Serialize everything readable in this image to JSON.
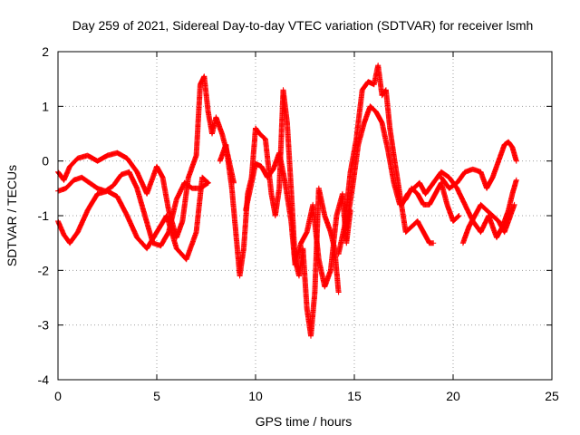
{
  "chart_data": {
    "type": "scatter",
    "title": "Day 259 of 2021, Sidereal Day-to-day VTEC variation (SDTVAR) for receiver lsmh",
    "xlabel": "GPS time / hours",
    "ylabel": "SDTVAR / TECUs",
    "xlim": [
      0,
      25
    ],
    "ylim": [
      -4,
      2
    ],
    "xticks": [
      0,
      5,
      10,
      15,
      20,
      25
    ],
    "yticks": [
      -4,
      -3,
      -2,
      -1,
      0,
      1,
      2
    ],
    "xtick_labels": [
      "0",
      "5",
      "10",
      "15",
      "20",
      "25"
    ],
    "ytick_labels": [
      "-4",
      "-3",
      "-2",
      "-1",
      "0",
      "1",
      "2"
    ],
    "grid": true,
    "marker": "plus",
    "series": [
      {
        "name": "trace-1",
        "color": "#ff0000",
        "x": [
          0.0,
          0.3,
          0.6,
          1.0,
          1.5,
          2.0,
          2.5,
          3.0,
          3.5,
          4.0,
          4.5,
          5.0,
          5.3,
          5.6,
          6.0,
          6.3,
          6.6,
          7.0,
          7.2,
          7.4,
          7.6,
          7.8,
          8.0,
          8.3,
          8.6,
          8.9
        ],
        "y": [
          -0.2,
          -0.35,
          -0.1,
          0.05,
          0.1,
          0.0,
          0.1,
          0.15,
          0.05,
          -0.2,
          -0.6,
          -0.1,
          -0.3,
          -0.9,
          -1.4,
          -1.1,
          -0.3,
          0.1,
          1.4,
          1.55,
          0.9,
          0.5,
          0.8,
          0.5,
          0.1,
          -0.4
        ]
      },
      {
        "name": "trace-2",
        "color": "#ff0000",
        "x": [
          0.0,
          0.4,
          0.8,
          1.2,
          1.6,
          2.0,
          2.4,
          2.8,
          3.2,
          3.6,
          4.0,
          4.4,
          4.8,
          5.2,
          5.6,
          6.0,
          6.4,
          6.8,
          7.2,
          7.6
        ],
        "y": [
          -0.55,
          -0.5,
          -0.35,
          -0.3,
          -0.4,
          -0.5,
          -0.55,
          -0.45,
          -0.25,
          -0.2,
          -0.5,
          -1.0,
          -1.5,
          -1.55,
          -1.3,
          -0.7,
          -0.4,
          -0.5,
          -0.5,
          -0.4
        ]
      },
      {
        "name": "trace-3",
        "color": "#ff0000",
        "x": [
          0.0,
          0.3,
          0.6,
          1.0,
          1.5,
          2.0,
          2.5,
          3.0,
          3.5,
          4.0,
          4.5,
          5.0,
          5.5,
          6.0,
          6.5,
          7.0,
          7.3,
          7.6
        ],
        "y": [
          -1.1,
          -1.35,
          -1.5,
          -1.3,
          -0.9,
          -0.6,
          -0.55,
          -0.65,
          -1.0,
          -1.4,
          -1.6,
          -1.3,
          -1.0,
          -1.6,
          -1.8,
          -1.3,
          -0.3,
          -0.4
        ]
      },
      {
        "name": "trace-4",
        "color": "#ff0000",
        "x": [
          8.2,
          8.5,
          8.8,
          9.0,
          9.2,
          9.4,
          9.6,
          9.8,
          10.0,
          10.2,
          10.5,
          10.8,
          11.0,
          11.2,
          11.4,
          11.6,
          11.8,
          12.0,
          12.2,
          12.4,
          12.6,
          12.8,
          13.0,
          13.2,
          13.5,
          13.8,
          14.0,
          14.2
        ],
        "y": [
          0.0,
          0.3,
          -0.5,
          -1.3,
          -2.1,
          -1.6,
          -0.6,
          -0.3,
          0.6,
          0.5,
          0.4,
          -0.6,
          -1.0,
          -0.5,
          1.3,
          0.7,
          -0.5,
          -1.8,
          -2.1,
          -1.6,
          -2.7,
          -3.2,
          -2.4,
          -0.5,
          -1.0,
          -1.3,
          -1.6,
          -2.4
        ]
      },
      {
        "name": "trace-5",
        "color": "#ff0000",
        "x": [
          9.5,
          9.8,
          10.0,
          10.3,
          10.6,
          10.9,
          11.2,
          11.5,
          11.8,
          12.0,
          12.3,
          12.6,
          12.9,
          13.2,
          13.5,
          13.8,
          14.1,
          14.4,
          14.6,
          14.8
        ],
        "y": [
          -0.9,
          -0.4,
          -0.05,
          -0.1,
          -0.3,
          -0.15,
          0.15,
          -0.4,
          -1.1,
          -1.9,
          -1.5,
          -1.3,
          -0.8,
          -1.8,
          -2.3,
          -2.0,
          -1.0,
          -0.6,
          -1.5,
          -0.9
        ]
      },
      {
        "name": "trace-6",
        "color": "#ff0000",
        "x": [
          14.2,
          14.5,
          14.8,
          15.1,
          15.4,
          15.7,
          16.0,
          16.2,
          16.4,
          16.6,
          16.8,
          17.0,
          17.3,
          17.6,
          17.9,
          18.2,
          18.5,
          18.8,
          19.0
        ],
        "y": [
          -1.7,
          -1.2,
          -0.2,
          0.4,
          1.3,
          1.45,
          1.4,
          1.75,
          1.2,
          1.3,
          0.6,
          0.1,
          -0.6,
          -1.3,
          -1.2,
          -1.1,
          -1.3,
          -1.5,
          -1.5
        ]
      },
      {
        "name": "trace-7",
        "color": "#ff0000",
        "x": [
          14.6,
          14.9,
          15.2,
          15.5,
          15.8,
          16.1,
          16.4,
          16.7,
          17.0,
          17.3,
          17.6,
          17.9,
          18.2,
          18.5,
          18.8,
          19.1,
          19.4,
          19.7,
          20.0,
          20.3
        ],
        "y": [
          -1.2,
          -0.5,
          0.3,
          0.7,
          1.0,
          0.9,
          0.7,
          0.2,
          -0.4,
          -0.8,
          -0.7,
          -0.5,
          -0.6,
          -0.8,
          -0.8,
          -0.6,
          -0.4,
          -0.8,
          -1.1,
          -1.0
        ]
      },
      {
        "name": "trace-8",
        "color": "#ff0000",
        "x": [
          17.4,
          17.7,
          18.0,
          18.3,
          18.6,
          19.0,
          19.4,
          19.8,
          20.2,
          20.6,
          21.0,
          21.4,
          21.8,
          22.2,
          22.5,
          22.8,
          23.0,
          23.2
        ],
        "y": [
          -0.8,
          -0.6,
          -0.5,
          -0.4,
          -0.6,
          -0.4,
          -0.2,
          -0.3,
          -0.5,
          -0.8,
          -1.1,
          -1.3,
          -1.0,
          -1.4,
          -1.2,
          -0.9,
          -0.6,
          -0.35
        ]
      },
      {
        "name": "trace-9",
        "color": "#ff0000",
        "x": [
          19.4,
          19.8,
          20.2,
          20.6,
          21.0,
          21.4,
          21.7,
          22.0,
          22.3,
          22.6,
          22.8,
          23.0,
          23.2
        ],
        "y": [
          -0.3,
          -0.5,
          -0.4,
          -0.2,
          -0.15,
          -0.2,
          -0.5,
          -0.3,
          0.0,
          0.3,
          0.35,
          0.25,
          0.0
        ]
      },
      {
        "name": "trace-10",
        "color": "#ff0000",
        "x": [
          20.5,
          20.8,
          21.1,
          21.4,
          21.7,
          22.0,
          22.3,
          22.6,
          22.9,
          23.1
        ],
        "y": [
          -1.5,
          -1.2,
          -1.0,
          -0.8,
          -0.9,
          -1.0,
          -1.1,
          -1.3,
          -1.0,
          -0.8
        ]
      }
    ]
  }
}
